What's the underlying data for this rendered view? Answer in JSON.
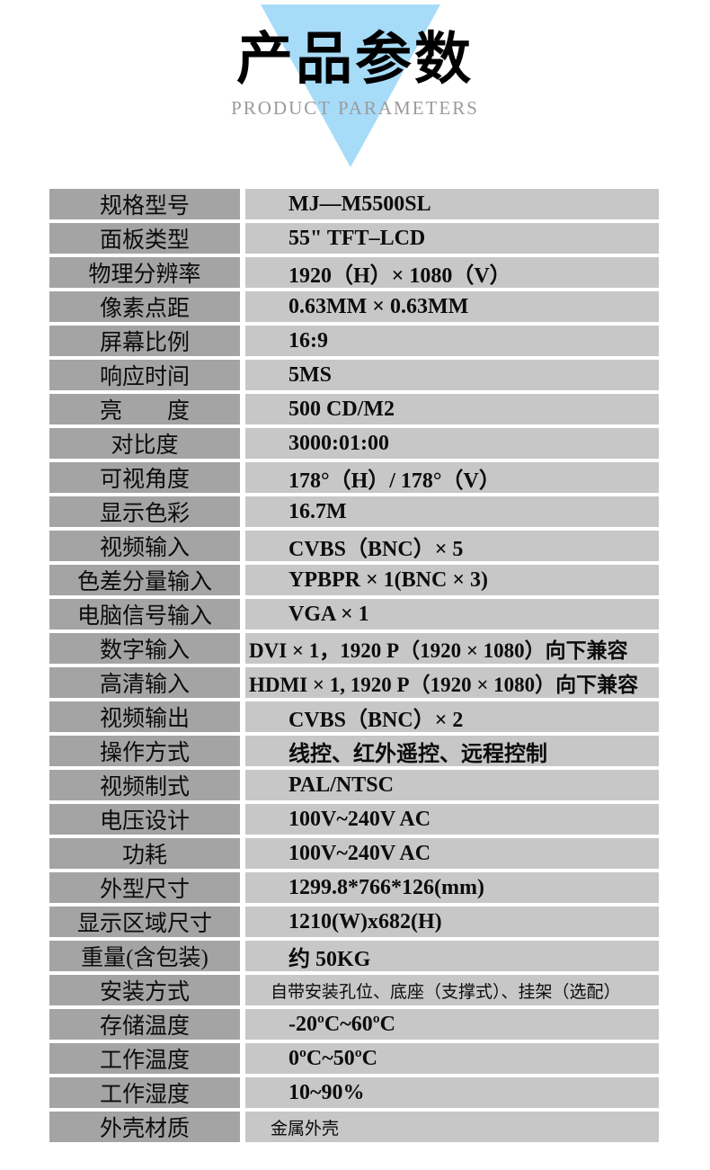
{
  "header": {
    "title": "产品参数",
    "subtitle": "PRODUCT PARAMETERS"
  },
  "colors": {
    "triangle": "#a7dcf8",
    "label_cell_bg": "#a4a4a4",
    "value_cell_bg": "#c7c7c7",
    "subtitle_text": "#9b9b9b"
  },
  "table": {
    "rows": [
      {
        "label": "规格型号",
        "value": "MJ—M5500SL"
      },
      {
        "label": "面板类型",
        "value": "55\" TFT–LCD"
      },
      {
        "label": "物理分辨率",
        "value": "1920（H）× 1080（V）"
      },
      {
        "label": "像素点距",
        "value": "0.63MM × 0.63MM"
      },
      {
        "label": "屏幕比例",
        "value": "16:9"
      },
      {
        "label": "响应时间",
        "value": "5MS"
      },
      {
        "label": "亮　　度",
        "value": "500 CD/M2"
      },
      {
        "label": "对比度",
        "value": "3000:01:00"
      },
      {
        "label": "可视角度",
        "value": "178°（H）/ 178°（V）"
      },
      {
        "label": "显示色彩",
        "value": "16.7M"
      },
      {
        "label": "视频输入",
        "value": "CVBS（BNC）× 5"
      },
      {
        "label": "色差分量输入",
        "value": "YPBPR × 1(BNC × 3)"
      },
      {
        "label": "电脑信号输入",
        "value": "VGA × 1"
      },
      {
        "label": "数字输入",
        "value": "DVI × 1，1920 P（1920 × 1080）向下兼容",
        "variant": "flush"
      },
      {
        "label": "高清输入",
        "value": "HDMI × 1, 1920 P（1920 × 1080）向下兼容",
        "variant": "flush"
      },
      {
        "label": "视频输出",
        "value": "CVBS（BNC）× 2"
      },
      {
        "label": "操作方式",
        "value": "线控、红外遥控、远程控制"
      },
      {
        "label": "视频制式",
        "value": "PAL/NTSC"
      },
      {
        "label": "电压设计",
        "value": "100V~240V AC"
      },
      {
        "label": "功耗",
        "value": "100V~240V AC"
      },
      {
        "label": "外型尺寸",
        "value": "1299.8*766*126(mm)"
      },
      {
        "label": "显示区域尺寸",
        "value": "1210(W)x682(H)"
      },
      {
        "label": "重量(含包装)",
        "value": "约 50KG"
      },
      {
        "label": "安装方式",
        "value": "自带安装孔位、底座（支撑式）、挂架（选配）",
        "variant": "small"
      },
      {
        "label": "存储温度",
        "value": "-20ºC~60ºC"
      },
      {
        "label": "工作温度",
        "value": "0ºC~50ºC"
      },
      {
        "label": "工作湿度",
        "value": "10~90%"
      },
      {
        "label": "外壳材质",
        "value": "金属外壳",
        "variant": "small"
      }
    ]
  }
}
